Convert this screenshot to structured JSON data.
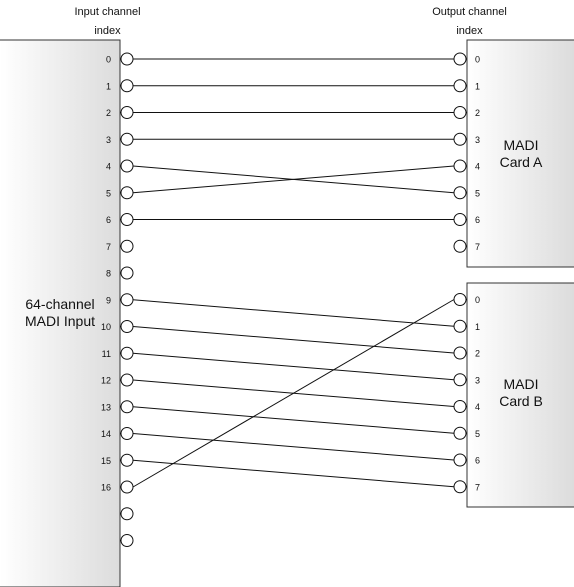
{
  "headers": {
    "input_line1": "Input channel",
    "input_line2": "index",
    "output_line1": "Output channel",
    "output_line2": "index"
  },
  "input_block": {
    "label_line1": "64-channel",
    "label_line2": "MADI Input",
    "port_labels": [
      "0",
      "1",
      "2",
      "3",
      "4",
      "5",
      "6",
      "7",
      "8",
      "9",
      "10",
      "11",
      "12",
      "13",
      "14",
      "15",
      "16",
      "",
      ""
    ]
  },
  "card_a": {
    "label_line1": "MADI",
    "label_line2": "Card A",
    "port_labels": [
      "0",
      "1",
      "2",
      "3",
      "4",
      "5",
      "6",
      "7"
    ]
  },
  "card_b": {
    "label_line1": "MADI",
    "label_line2": "Card B",
    "port_labels": [
      "0",
      "1",
      "2",
      "3",
      "4",
      "5",
      "6",
      "7"
    ]
  },
  "connections": [
    {
      "from": 0,
      "card": "A",
      "to": 0
    },
    {
      "from": 1,
      "card": "A",
      "to": 1
    },
    {
      "from": 2,
      "card": "A",
      "to": 2
    },
    {
      "from": 3,
      "card": "A",
      "to": 3
    },
    {
      "from": 4,
      "card": "A",
      "to": 5
    },
    {
      "from": 5,
      "card": "A",
      "to": 4
    },
    {
      "from": 6,
      "card": "A",
      "to": 6
    },
    {
      "from": 9,
      "card": "B",
      "to": 1
    },
    {
      "from": 10,
      "card": "B",
      "to": 2
    },
    {
      "from": 11,
      "card": "B",
      "to": 3
    },
    {
      "from": 12,
      "card": "B",
      "to": 4
    },
    {
      "from": 13,
      "card": "B",
      "to": 5
    },
    {
      "from": 14,
      "card": "B",
      "to": 6
    },
    {
      "from": 15,
      "card": "B",
      "to": 7
    },
    {
      "from": 16,
      "card": "B",
      "to": 0
    }
  ]
}
